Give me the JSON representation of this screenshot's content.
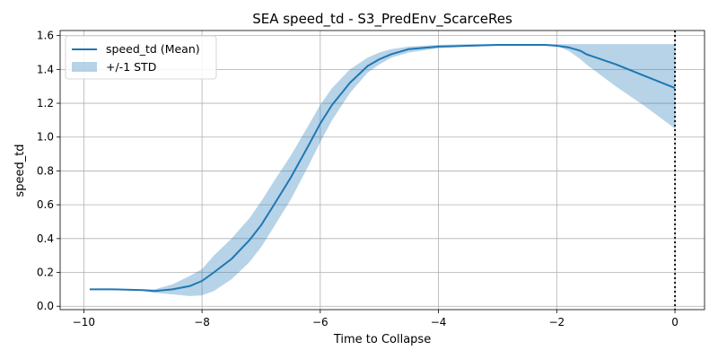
{
  "chart_data": {
    "type": "line",
    "title": "SEA speed_td - S3_PredEnv_ScarceRes",
    "xlabel": "Time to Collapse",
    "ylabel": "speed_td",
    "xlim": [
      -10.4,
      0.5
    ],
    "ylim": [
      -0.02,
      1.63
    ],
    "xticks": [
      -10,
      -8,
      -6,
      -4,
      -2,
      0
    ],
    "xtick_labels": [
      "−10",
      "−8",
      "−6",
      "−4",
      "−2",
      "0"
    ],
    "yticks": [
      0.0,
      0.2,
      0.4,
      0.6,
      0.8,
      1.0,
      1.2,
      1.4,
      1.6
    ],
    "ytick_labels": [
      "0.0",
      "0.2",
      "0.4",
      "0.6",
      "0.8",
      "1.0",
      "1.2",
      "1.4",
      "1.6"
    ],
    "grid": true,
    "legend_position": "top-left",
    "collapse_line_x": 0,
    "series": [
      {
        "name": "speed_td (Mean)",
        "color": "#1f77b4",
        "x": [
          -9.9,
          -9.5,
          -9.0,
          -8.8,
          -8.5,
          -8.2,
          -8.0,
          -7.8,
          -7.5,
          -7.2,
          -7.0,
          -6.8,
          -6.5,
          -6.2,
          -6.0,
          -5.8,
          -5.5,
          -5.2,
          -5.0,
          -4.8,
          -4.5,
          -4.0,
          -3.5,
          -3.0,
          -2.5,
          -2.2,
          -2.0,
          -1.8,
          -1.6,
          -1.5,
          -1.0,
          -0.5,
          0.0
        ],
        "y": [
          0.1,
          0.1,
          0.095,
          0.09,
          0.1,
          0.12,
          0.15,
          0.2,
          0.28,
          0.39,
          0.48,
          0.59,
          0.76,
          0.95,
          1.08,
          1.19,
          1.32,
          1.42,
          1.46,
          1.49,
          1.52,
          1.535,
          1.54,
          1.545,
          1.545,
          1.545,
          1.54,
          1.53,
          1.51,
          1.49,
          1.43,
          1.36,
          1.29
        ]
      }
    ],
    "band": {
      "name": "+/-1 STD",
      "color": "#1f77b4",
      "opacity": 0.32,
      "x": [
        -9.9,
        -9.5,
        -9.0,
        -8.8,
        -8.5,
        -8.2,
        -8.0,
        -7.8,
        -7.5,
        -7.2,
        -7.0,
        -6.8,
        -6.5,
        -6.2,
        -6.0,
        -5.8,
        -5.5,
        -5.2,
        -5.0,
        -4.8,
        -4.5,
        -4.0,
        -3.5,
        -3.0,
        -2.5,
        -2.2,
        -2.0,
        -1.8,
        -1.6,
        -1.5,
        -1.0,
        -0.5,
        0.0
      ],
      "lower": [
        0.1,
        0.1,
        0.09,
        0.08,
        0.07,
        0.06,
        0.065,
        0.09,
        0.16,
        0.26,
        0.35,
        0.46,
        0.63,
        0.83,
        0.97,
        1.1,
        1.26,
        1.38,
        1.43,
        1.47,
        1.5,
        1.525,
        1.535,
        1.54,
        1.545,
        1.545,
        1.54,
        1.51,
        1.46,
        1.43,
        1.3,
        1.18,
        1.05
      ],
      "upper": [
        0.1,
        0.1,
        0.1,
        0.1,
        0.13,
        0.18,
        0.22,
        0.3,
        0.4,
        0.52,
        0.62,
        0.73,
        0.89,
        1.07,
        1.19,
        1.29,
        1.4,
        1.47,
        1.5,
        1.52,
        1.535,
        1.545,
        1.55,
        1.55,
        1.55,
        1.55,
        1.55,
        1.55,
        1.55,
        1.55,
        1.55,
        1.55,
        1.55
      ]
    }
  }
}
